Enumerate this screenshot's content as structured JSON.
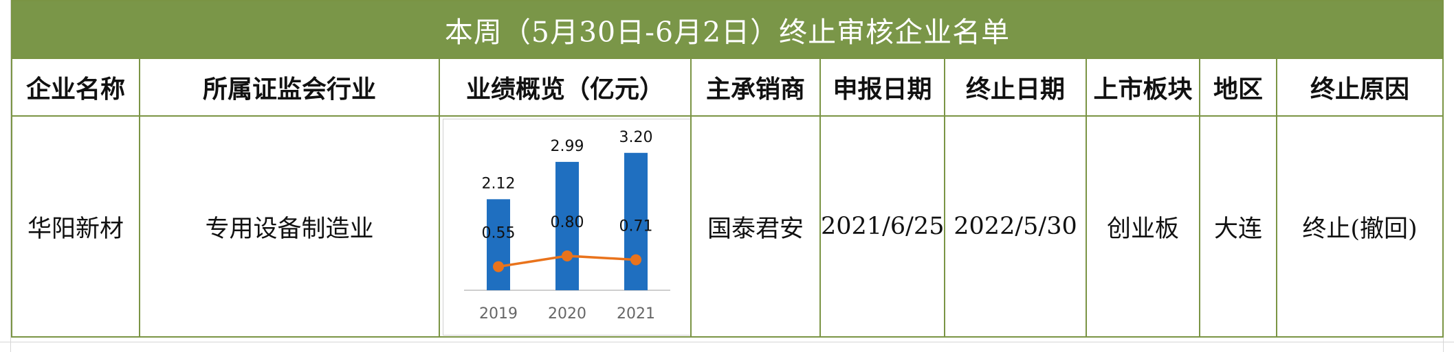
{
  "title": "本周（5月30日-6月2日）终止审核企业名单",
  "headers": [
    "企业名称",
    "所属证监会行业",
    "业绩概览（亿元）",
    "主承销商",
    "申报日期",
    "终止日期",
    "上市板块",
    "地区",
    "终止原因"
  ],
  "row": {
    "company": "华阳新材",
    "industry": "专用设备制造业",
    "underwriter": "国泰君安",
    "filing_date": "2021/6/25",
    "termination_date": "2022/5/30",
    "board": "创业板",
    "region": "大连",
    "reason": "终止(撤回)"
  },
  "colors": {
    "header_bg": "#7a9648",
    "border": "#7a9444",
    "bar": "#1f6fc0",
    "line": "#e9731c"
  },
  "chart_data": {
    "type": "bar",
    "categories": [
      "2019",
      "2020",
      "2021"
    ],
    "series": [
      {
        "type": "bar",
        "values": [
          2.12,
          2.99,
          3.2
        ],
        "labels": [
          "2.12",
          "2.99",
          "3.20"
        ]
      },
      {
        "type": "line",
        "values": [
          0.55,
          0.8,
          0.71
        ],
        "labels": [
          "0.55",
          "0.80",
          "0.71"
        ]
      }
    ],
    "ylim": [
      0,
      3.5
    ],
    "grid": false,
    "legend": "none"
  }
}
